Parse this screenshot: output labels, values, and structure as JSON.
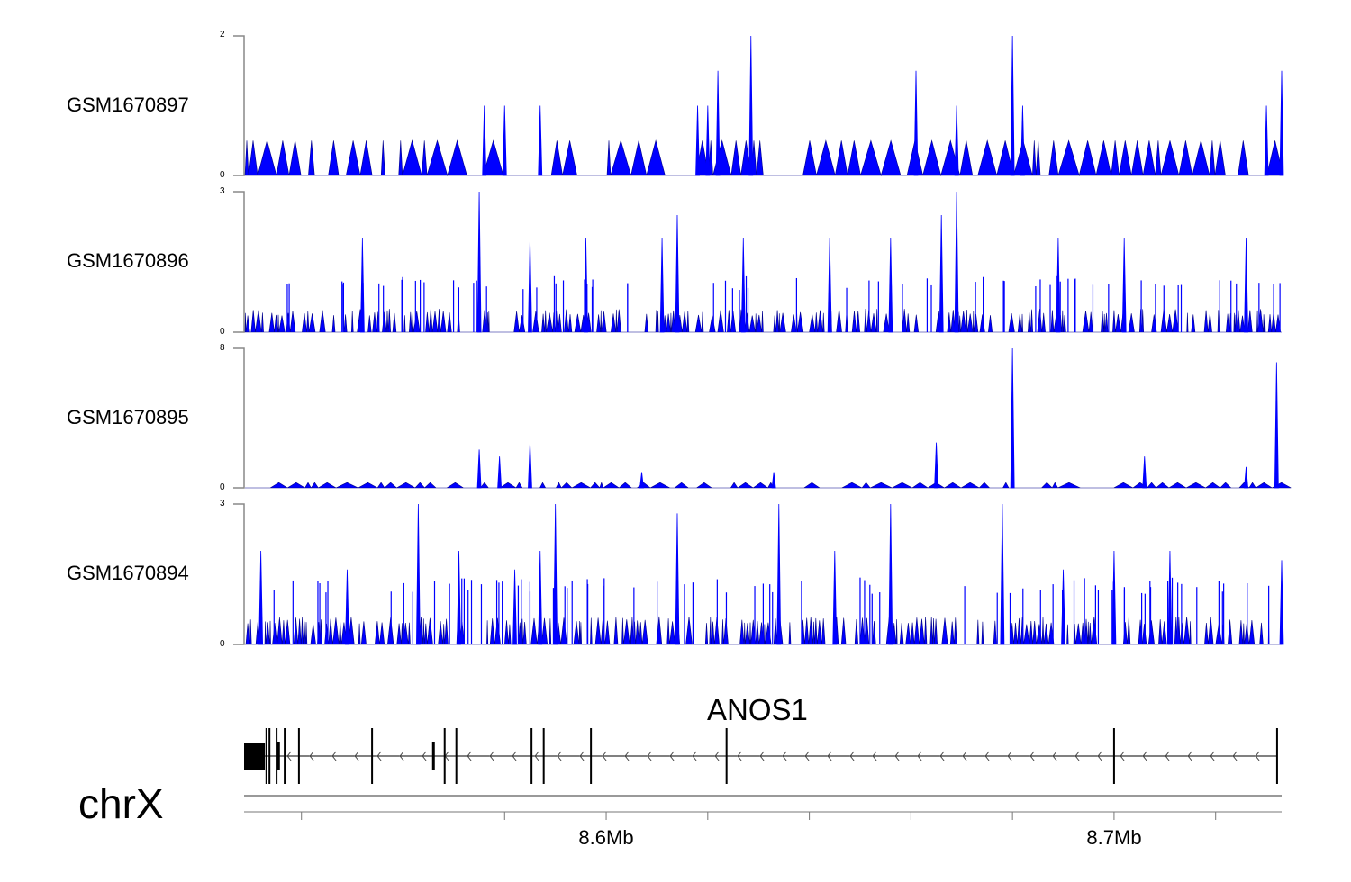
{
  "chart_data": {
    "type": "area",
    "chromosome": "chrX",
    "xlim_mb": [
      8.5287,
      8.733
    ],
    "x_ticks_mb": [
      8.54,
      8.56,
      8.58,
      8.6,
      8.62,
      8.64,
      8.66,
      8.68,
      8.7,
      8.72
    ],
    "x_tick_labels": [
      {
        "mb": 8.6,
        "label": "8.6Mb"
      },
      {
        "mb": 8.7,
        "label": "8.7Mb"
      }
    ],
    "fill_color": "#0000ff",
    "line_color": "#00008b",
    "tracks": [
      {
        "name": "GSM1670897",
        "ylim": [
          0,
          2
        ],
        "ytick_labels": [
          "0",
          "2"
        ],
        "base_level": 0.5,
        "density": 0.35,
        "seed": 11,
        "peaks": [
          [
            8.6285,
            2
          ],
          [
            8.68,
            2
          ],
          [
            8.622,
            1.5
          ],
          [
            8.661,
            1.5
          ],
          [
            8.733,
            1.5
          ],
          [
            8.618,
            1
          ],
          [
            8.669,
            1
          ],
          [
            8.576,
            1
          ],
          [
            8.58,
            1
          ],
          [
            8.587,
            1
          ],
          [
            8.62,
            1
          ],
          [
            8.73,
            1
          ],
          [
            8.682,
            1
          ]
        ]
      },
      {
        "name": "GSM1670896",
        "ylim": [
          0,
          3
        ],
        "ytick_labels": [
          "0",
          "3"
        ],
        "base_level": 0.5,
        "density": 0.8,
        "seed": 23,
        "spike_level": 1,
        "spike_count": 70,
        "peaks": [
          [
            8.575,
            3
          ],
          [
            8.669,
            3
          ],
          [
            8.614,
            2.5
          ],
          [
            8.666,
            2.5
          ],
          [
            8.552,
            2
          ],
          [
            8.627,
            2
          ],
          [
            8.644,
            2
          ],
          [
            8.689,
            2
          ],
          [
            8.702,
            2
          ],
          [
            8.726,
            2
          ],
          [
            8.596,
            2
          ],
          [
            8.585,
            2
          ],
          [
            8.656,
            2
          ],
          [
            8.611,
            2
          ]
        ]
      },
      {
        "name": "GSM1670895",
        "ylim": [
          0,
          8
        ],
        "ytick_labels": [
          "0",
          "8"
        ],
        "base_level": 0.3,
        "density": 0.3,
        "seed": 37,
        "peaks": [
          [
            8.68,
            8
          ],
          [
            8.732,
            7.2
          ],
          [
            8.665,
            2.6
          ],
          [
            8.585,
            2.6
          ],
          [
            8.575,
            2.2
          ],
          [
            8.579,
            1.8
          ],
          [
            8.706,
            1.8
          ],
          [
            8.726,
            1.2
          ],
          [
            8.633,
            0.9
          ],
          [
            8.607,
            0.9
          ]
        ]
      },
      {
        "name": "GSM1670894",
        "ylim": [
          0,
          3
        ],
        "ytick_labels": [
          "0",
          "3"
        ],
        "base_level": 0.6,
        "density": 0.85,
        "seed": 51,
        "spike_level": 1.2,
        "spike_count": 80,
        "peaks": [
          [
            8.563,
            3
          ],
          [
            8.59,
            3
          ],
          [
            8.634,
            3
          ],
          [
            8.656,
            3
          ],
          [
            8.678,
            3
          ],
          [
            8.614,
            2.8
          ],
          [
            8.532,
            2
          ],
          [
            8.571,
            2
          ],
          [
            8.587,
            2
          ],
          [
            8.645,
            2
          ],
          [
            8.7,
            2
          ],
          [
            8.711,
            2
          ],
          [
            8.733,
            1.8
          ],
          [
            8.549,
            1.6
          ],
          [
            8.582,
            1.6
          ],
          [
            8.69,
            1.6
          ]
        ]
      }
    ],
    "gene": {
      "name": "ANOS1",
      "strand": "-",
      "utr_block_mb": [
        8.5287,
        8.5328
      ],
      "exons_mb": [
        8.5331,
        8.5337,
        8.5351,
        8.5354,
        8.5367,
        8.5395,
        8.5539,
        8.5659,
        8.5682,
        8.5705,
        8.5853,
        8.5877,
        8.597,
        8.6237,
        8.7,
        8.7321
      ],
      "short_exons_mb": [
        8.5354,
        8.5659
      ]
    }
  }
}
